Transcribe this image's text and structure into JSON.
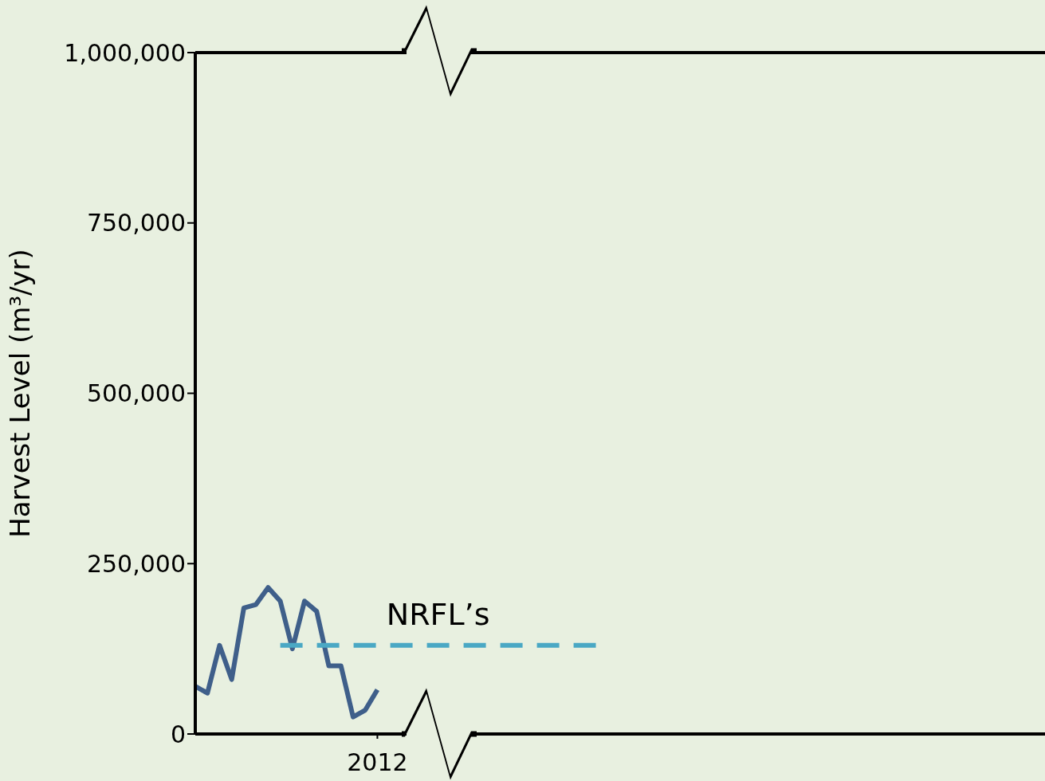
{
  "chart_data": {
    "type": "line",
    "ylabel": "Harvest Level (m³/yr)",
    "categories": [
      null,
      null,
      null,
      null,
      null,
      null,
      null,
      null,
      null,
      null,
      null,
      null,
      null,
      null,
      null,
      "2012",
      null,
      null,
      null,
      null,
      null,
      null,
      null,
      null,
      null,
      null,
      null,
      null,
      null,
      null,
      null,
      null,
      null,
      null,
      null,
      null,
      null,
      null,
      null,
      null,
      null,
      null,
      null,
      null,
      null,
      null,
      null,
      null,
      null,
      null,
      null,
      null,
      null,
      null,
      null,
      null,
      null,
      null,
      null,
      null,
      null,
      null,
      null,
      null,
      null,
      null,
      null,
      null,
      null,
      null,
      null
    ],
    "series": [
      {
        "color": "#3f5f8a",
        "line_style": "solid",
        "values": [
          70000,
          60000,
          130000,
          80000,
          185000,
          190000,
          215000,
          195000,
          125000,
          195000,
          180000,
          100000,
          100000,
          25000,
          35000,
          65000,
          null,
          null,
          null,
          null,
          null,
          null,
          null,
          null,
          null,
          null,
          null,
          null,
          null,
          null,
          null,
          null,
          null,
          null,
          null,
          null,
          null,
          null,
          null,
          null,
          null,
          null,
          null,
          null,
          null,
          null,
          null,
          null,
          null,
          null,
          null,
          null,
          null,
          null,
          null,
          null,
          null,
          null,
          null,
          null,
          null,
          null,
          null,
          null,
          null,
          null,
          null,
          null,
          null,
          null,
          null
        ]
      },
      {
        "name": "NRFL’s",
        "color": "#4aa8c4",
        "line_style": "dashed",
        "values": [
          null,
          null,
          null,
          null,
          null,
          null,
          null,
          130000,
          130000,
          130000,
          130000,
          130000,
          130000,
          130000,
          130000,
          130000,
          130000,
          130000,
          130000,
          130000,
          130000,
          130000,
          130000,
          130000,
          130000,
          130000,
          130000,
          130000,
          130000,
          130000,
          130000,
          130000,
          130000,
          130000,
          null,
          null,
          null,
          null,
          null,
          null,
          null,
          null,
          null,
          null,
          null,
          null,
          null,
          null,
          null,
          null,
          null,
          null,
          null,
          null,
          null,
          null,
          null,
          null,
          null,
          null,
          null,
          null,
          null,
          null,
          null,
          null,
          null,
          null,
          null,
          null,
          null
        ]
      }
    ],
    "ylim": [
      0,
      1000000
    ],
    "yticks": [
      {
        "value": 0,
        "label": "0"
      },
      {
        "value": 250000,
        "label": "250,000"
      },
      {
        "value": 500000,
        "label": "500,000"
      },
      {
        "value": 750000,
        "label": "750,000"
      },
      {
        "value": 1000000,
        "label": "1,000,000"
      }
    ]
  }
}
